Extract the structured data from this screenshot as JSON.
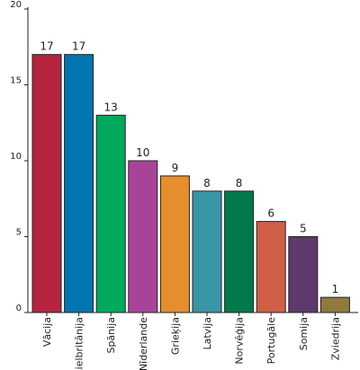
{
  "chart_data": {
    "type": "bar",
    "categories": [
      "Vācija",
      "Lielbritānija",
      "Spānija",
      "Nīderlande",
      "Grieķija",
      "Latvija",
      "Norvēģija",
      "Portugāle",
      "Somija",
      "Zviedrija"
    ],
    "values": [
      17,
      17,
      13,
      10,
      9,
      8,
      8,
      6,
      5,
      1
    ],
    "colors": [
      "#b5243f",
      "#0075b0",
      "#00a95c",
      "#a7449a",
      "#e68d2e",
      "#3a95a6",
      "#007a4b",
      "#cf5f47",
      "#5d3a6b",
      "#8f7a3c"
    ],
    "ylim": [
      0,
      20
    ],
    "yticks": [
      0,
      5,
      10,
      15,
      20
    ],
    "title": "",
    "xlabel": "",
    "ylabel": "",
    "grid": false,
    "data_labels": true
  }
}
